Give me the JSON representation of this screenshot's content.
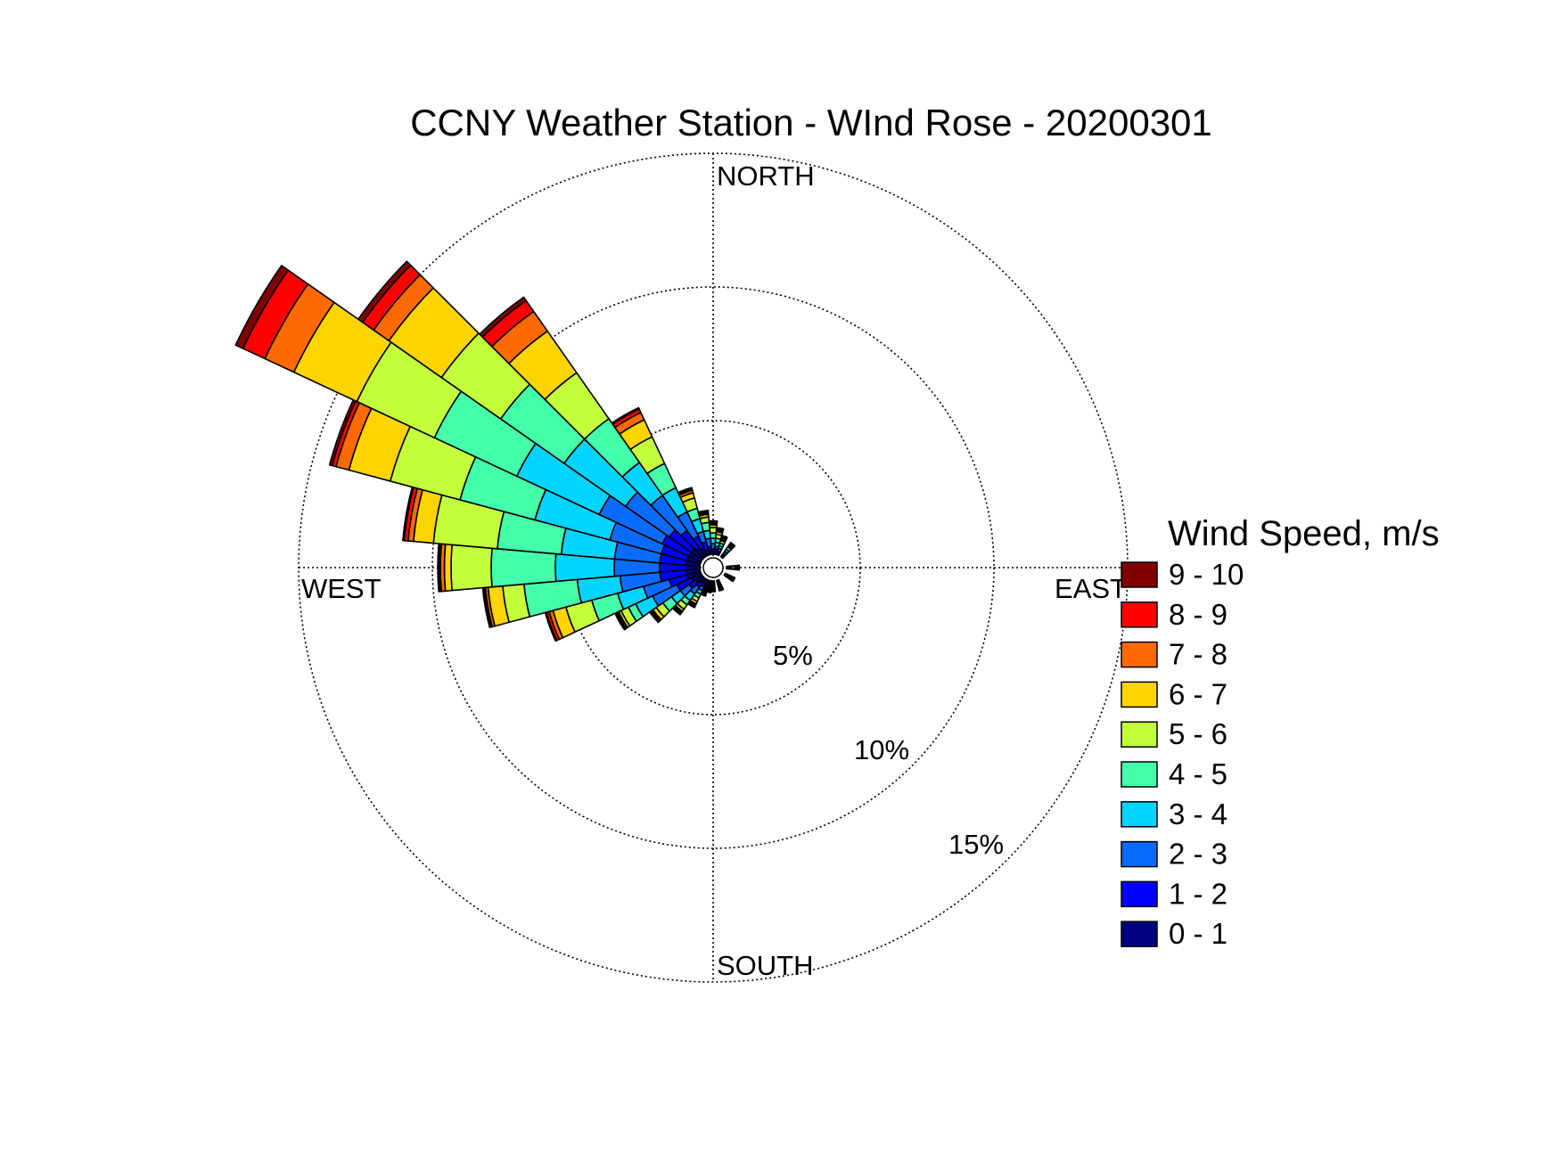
{
  "chart_data": {
    "type": "wind-rose",
    "title": "CCNY Weather Station - WInd Rose - 20200301",
    "direction_labels": {
      "north": "NORTH",
      "south": "SOUTH",
      "east": "EAST",
      "west": "WEST"
    },
    "radial_axis": {
      "unit": "%",
      "range": [
        0,
        15
      ],
      "rings": [
        5,
        10,
        15
      ],
      "ring_labels": [
        "5%",
        "10%",
        "15%"
      ],
      "grid": true
    },
    "legend": {
      "title": "Wind Speed, m/s",
      "placement": "right",
      "bins": [
        {
          "label": "9 - 10",
          "color": "#800000"
        },
        {
          "label": "8 - 9",
          "color": "#ff0000"
        },
        {
          "label": "7 - 8",
          "color": "#ff6a00"
        },
        {
          "label": "6 - 7",
          "color": "#ffd400"
        },
        {
          "label": "5 - 6",
          "color": "#c4ff3c"
        },
        {
          "label": "4 - 5",
          "color": "#44ffaa"
        },
        {
          "label": "3 - 4",
          "color": "#00d4ff"
        },
        {
          "label": "2 - 3",
          "color": "#0a6cff"
        },
        {
          "label": "1 - 2",
          "color": "#0000ff"
        },
        {
          "label": "0 - 1",
          "color": "#000080"
        }
      ]
    },
    "speed_bins": [
      "0 - 1",
      "1 - 2",
      "2 - 3",
      "3 - 4",
      "4 - 5",
      "5 - 6",
      "6 - 7",
      "7 - 8",
      "8 - 9",
      "9 - 10"
    ],
    "sector_width_deg": 10,
    "sectors": [
      {
        "direction_deg": 200,
        "cumulative_pct": [
          0.1,
          0.2,
          0.25,
          0.3,
          0.35,
          0.4,
          0.45,
          0.5,
          0.55,
          0.6
        ]
      },
      {
        "direction_deg": 210,
        "cumulative_pct": [
          0.15,
          0.3,
          0.45,
          0.6,
          0.75,
          0.9,
          1.0,
          1.05,
          1.1,
          1.15
        ]
      },
      {
        "direction_deg": 220,
        "cumulative_pct": [
          0.2,
          0.4,
          0.7,
          1.0,
          1.2,
          1.4,
          1.5,
          1.55,
          1.6,
          1.65
        ]
      },
      {
        "direction_deg": 230,
        "cumulative_pct": [
          0.3,
          0.6,
          1.0,
          1.4,
          1.8,
          2.1,
          2.25,
          2.3,
          2.35,
          2.4
        ]
      },
      {
        "direction_deg": 240,
        "cumulative_pct": [
          0.4,
          1.0,
          2.0,
          2.7,
          3.0,
          3.3,
          3.4,
          3.45,
          3.5,
          3.55
        ]
      },
      {
        "direction_deg": 250,
        "cumulative_pct": [
          0.5,
          1.2,
          2.2,
          3.2,
          4.2,
          5.2,
          5.7,
          5.85,
          5.95,
          6.0
        ]
      },
      {
        "direction_deg": 260,
        "cumulative_pct": [
          0.5,
          1.5,
          3.0,
          4.6,
          6.6,
          7.4,
          7.95,
          8.05,
          8.1,
          8.15
        ]
      },
      {
        "direction_deg": 270,
        "cumulative_pct": [
          0.5,
          1.5,
          3.2,
          5.4,
          7.8,
          9.3,
          9.55,
          9.7,
          9.75,
          9.8
        ]
      },
      {
        "direction_deg": 280,
        "cumulative_pct": [
          0.5,
          1.5,
          3.2,
          5.2,
          7.6,
          10.0,
          10.75,
          10.95,
          11.1,
          11.15
        ]
      },
      {
        "direction_deg": 290,
        "cumulative_pct": [
          0.5,
          1.5,
          3.5,
          6.4,
          9.3,
          12.0,
          13.6,
          14.1,
          14.25,
          14.35
        ]
      },
      {
        "direction_deg": 300,
        "cumulative_pct": [
          0.5,
          1.6,
          4.2,
          7.6,
          11.0,
          14.2,
          16.8,
          18.0,
          18.9,
          19.2
        ]
      },
      {
        "direction_deg": 310,
        "cumulative_pct": [
          0.5,
          1.5,
          3.5,
          6.3,
          9.2,
          11.9,
          14.3,
          15.0,
          15.5,
          15.7
        ]
      },
      {
        "direction_deg": 320,
        "cumulative_pct": [
          0.4,
          1.2,
          2.8,
          4.3,
          6.3,
          8.4,
          10.3,
          11.2,
          11.7,
          11.85
        ]
      },
      {
        "direction_deg": 330,
        "cumulative_pct": [
          0.3,
          0.8,
          1.8,
          2.8,
          3.8,
          4.9,
          5.6,
          5.9,
          6.05,
          6.1
        ]
      },
      {
        "direction_deg": 340,
        "cumulative_pct": [
          0.2,
          0.5,
          0.9,
          1.4,
          1.8,
          2.2,
          2.4,
          2.5,
          2.55,
          2.6
        ]
      },
      {
        "direction_deg": 350,
        "cumulative_pct": [
          0.15,
          0.3,
          0.6,
          0.9,
          1.2,
          1.4,
          1.5,
          1.55,
          1.6,
          1.65
        ]
      },
      {
        "direction_deg": 0,
        "cumulative_pct": [
          0.1,
          0.2,
          0.4,
          0.6,
          0.8,
          1.0,
          1.1,
          1.15,
          1.2,
          1.25
        ]
      },
      {
        "direction_deg": 10,
        "cumulative_pct": [
          0.1,
          0.2,
          0.3,
          0.45,
          0.6,
          0.75,
          0.85,
          0.9,
          0.95,
          1.0
        ]
      },
      {
        "direction_deg": 20,
        "cumulative_pct": [
          0.1,
          0.15,
          0.25,
          0.35,
          0.45,
          0.55,
          0.6,
          0.65,
          0.7,
          0.75
        ]
      },
      {
        "direction_deg": 40,
        "cumulative_pct": [
          0.1,
          0.15,
          0.25,
          0.35,
          0.45,
          0.5,
          0.55,
          0.6,
          0.62,
          0.65
        ]
      },
      {
        "direction_deg": 90,
        "cumulative_pct": [
          0.1,
          0.15,
          0.2,
          0.3,
          0.35,
          0.4,
          0.42,
          0.44,
          0.46,
          0.48
        ]
      },
      {
        "direction_deg": 120,
        "cumulative_pct": [
          0.1,
          0.15,
          0.2,
          0.25,
          0.3,
          0.32,
          0.34,
          0.36,
          0.38,
          0.4
        ]
      },
      {
        "direction_deg": 160,
        "cumulative_pct": [
          0.1,
          0.15,
          0.2,
          0.25,
          0.3,
          0.32,
          0.34,
          0.36,
          0.38,
          0.4
        ]
      },
      {
        "direction_deg": 180,
        "cumulative_pct": [
          0.1,
          0.15,
          0.2,
          0.25,
          0.3,
          0.32,
          0.34,
          0.36,
          0.38,
          0.4
        ]
      },
      {
        "direction_deg": 190,
        "cumulative_pct": [
          0.1,
          0.15,
          0.2,
          0.25,
          0.3,
          0.35,
          0.38,
          0.4,
          0.42,
          0.44
        ]
      }
    ]
  }
}
